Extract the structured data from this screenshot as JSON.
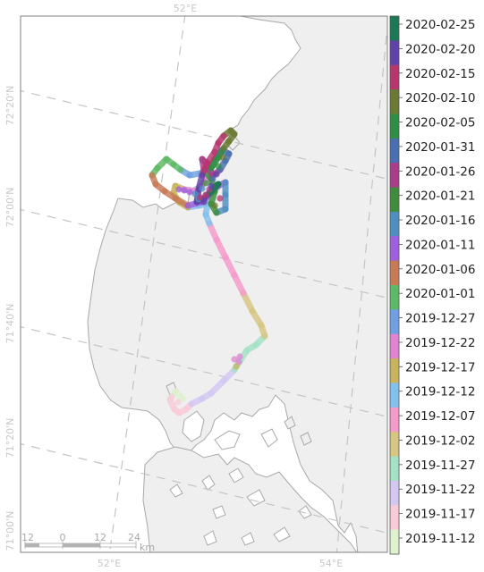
{
  "map": {
    "type": "animal-track-map",
    "lon_labels": [
      "52°E",
      "54°E"
    ],
    "lat_labels": [
      "72°20'N",
      "72°00'N",
      "71°40'N",
      "71°20'N",
      "71°00'N"
    ],
    "scale_bar": {
      "ticks": [
        "12",
        "0",
        "12",
        "24"
      ],
      "unit": "km"
    },
    "colors": {
      "land": "#efefef",
      "coast": "#a9a9a9",
      "water": "#ffffff",
      "graticule": "#c4c4c4"
    }
  },
  "legend": {
    "dates": [
      "2020-02-25",
      "2020-02-20",
      "2020-02-15",
      "2020-02-10",
      "2020-02-05",
      "2020-01-31",
      "2020-01-26",
      "2020-01-21",
      "2020-01-16",
      "2020-01-11",
      "2020-01-06",
      "2020-01-01",
      "2019-12-27",
      "2019-12-22",
      "2019-12-17",
      "2019-12-12",
      "2019-12-07",
      "2019-12-02",
      "2019-11-27",
      "2019-11-22",
      "2019-11-17",
      "2019-11-12"
    ],
    "colors": [
      "#1b7a55",
      "#5f43a8",
      "#b8366e",
      "#6a7a33",
      "#2e8f44",
      "#4a6fb0",
      "#ab3c8a",
      "#3f8d3c",
      "#4f8fc0",
      "#9f5fe0",
      "#c87a55",
      "#5cba66",
      "#6fa0e4",
      "#e084d1",
      "#c9b45e",
      "#82c1ee",
      "#f69acb",
      "#d7c681",
      "#a3e2c6",
      "#d4c8f3",
      "#f9cbd8",
      "#def2ce"
    ]
  }
}
